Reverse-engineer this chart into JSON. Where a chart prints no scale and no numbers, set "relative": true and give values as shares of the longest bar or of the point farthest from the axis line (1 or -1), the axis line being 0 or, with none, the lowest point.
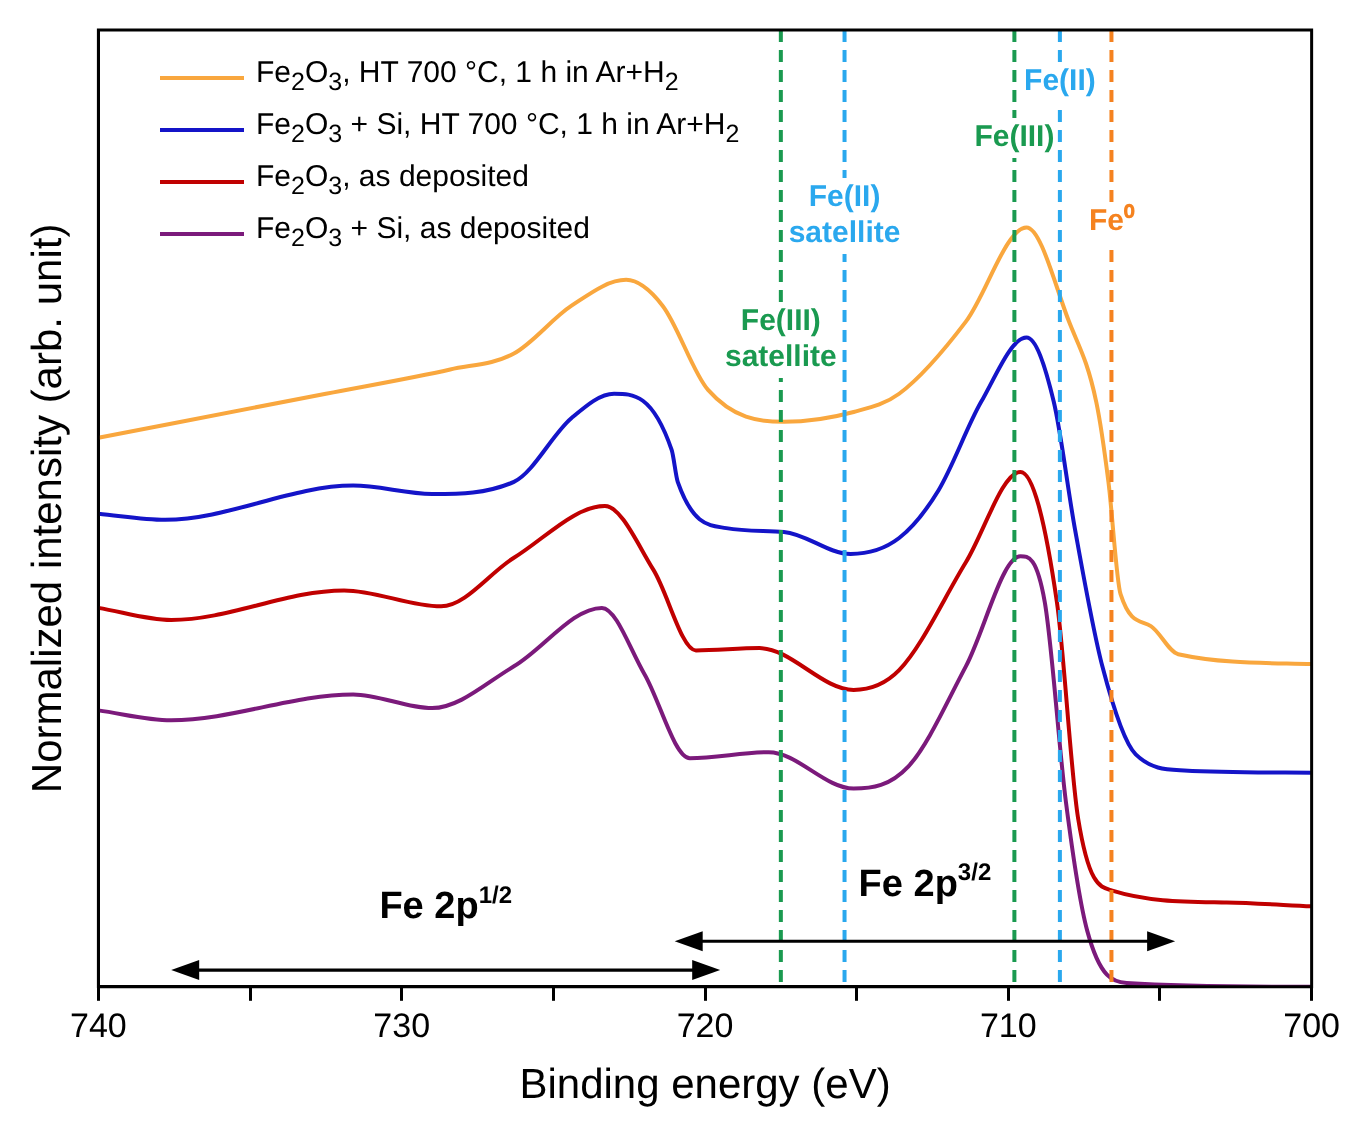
{
  "chart_data": {
    "type": "line",
    "relative": true,
    "xlabel": "Binding energy (eV)",
    "ylabel": "Normalized intensity (arb. unit)",
    "xlim": [
      740,
      700
    ],
    "xticks": [
      740,
      {
        "value": 735,
        "label": null
      },
      730,
      {
        "value": 725,
        "label": null
      },
      720,
      {
        "value": 715,
        "label": null
      },
      710,
      {
        "value": 705,
        "label": null
      },
      700
    ],
    "grid": false,
    "legend": "top left",
    "marker": "none",
    "line_style": "solid",
    "series": [
      {
        "name": "Fe$_{2}$O$_{3}$, HT 700 °C, 1 h in Ar+H$_{2}$",
        "color": "#f9a73e",
        "x": [
          740,
          732.5,
          728.4,
          726.3,
          724.4,
          722.6,
          721.4,
          719.9,
          717.4,
          715.1,
          713.6,
          711.4,
          709.4,
          708.0,
          707.1,
          706.7,
          706.3,
          705.3,
          704.4,
          700
        ],
        "values": [
          0.723,
          0.781,
          0.813,
          0.834,
          0.897,
          0.931,
          0.897,
          0.786,
          0.744,
          0.757,
          0.781,
          0.876,
          1.0,
          0.876,
          0.77,
          0.665,
          0.517,
          0.475,
          0.438,
          0.425
        ]
      },
      {
        "name": "Fe$_{2}$O$_{3}$ + Si, HT 700 °C, 1 h in Ar+H$_{2}$",
        "color": "#1414c8",
        "x": [
          740,
          737.8,
          731.6,
          729,
          726.3,
          724.4,
          723,
          721.1,
          720.9,
          719.3,
          717.4,
          715.2,
          713.6,
          712.3,
          710.9,
          709.4,
          708.5,
          707.8,
          706.9,
          705.8,
          704.2,
          700
        ],
        "values": [
          0.623,
          0.615,
          0.66,
          0.649,
          0.665,
          0.749,
          0.781,
          0.707,
          0.665,
          0.604,
          0.599,
          0.57,
          0.591,
          0.654,
          0.77,
          0.855,
          0.77,
          0.602,
          0.422,
          0.306,
          0.285,
          0.282
        ]
      },
      {
        "name": "Fe$_{2}$O$_{3}$, as deposited",
        "color": "#c00000",
        "x": [
          740,
          737.6,
          731.9,
          728.7,
          726.3,
          723.3,
          721.7,
          720.3,
          718.2,
          715.1,
          713.6,
          711.4,
          709.6,
          708.4,
          707.7,
          706.6,
          702.8,
          700
        ],
        "values": [
          0.499,
          0.483,
          0.522,
          0.501,
          0.565,
          0.633,
          0.549,
          0.443,
          0.446,
          0.391,
          0.417,
          0.559,
          0.678,
          0.507,
          0.222,
          0.127,
          0.111,
          0.106
        ]
      },
      {
        "name": "Fe$_{2}$O$_{3}$ + Si, as deposited",
        "color": "#7b1a7b",
        "x": [
          740,
          737.6,
          731.6,
          729,
          726.3,
          723.4,
          722,
          720.5,
          717.9,
          715.1,
          713.3,
          711.4,
          709.6,
          708.8,
          708.1,
          707.4,
          706.1,
          700
        ],
        "values": [
          0.364,
          0.351,
          0.385,
          0.367,
          0.422,
          0.499,
          0.412,
          0.301,
          0.309,
          0.261,
          0.29,
          0.422,
          0.567,
          0.507,
          0.243,
          0.074,
          0.005,
          0
        ]
      }
    ],
    "ref_lines": [
      {
        "axis": "x",
        "value": 717.5,
        "label": "Fe(III)\nsatellite",
        "color": "#1a9a50",
        "line_style": "dashed"
      },
      {
        "axis": "x",
        "value": 715.4,
        "label": "Fe(II)\nsatellite",
        "color": "#2aa8ee",
        "line_style": "dashed"
      },
      {
        "axis": "x",
        "value": 709.8,
        "label": "Fe(III)",
        "color": "#1a9a50",
        "line_style": "dashed"
      },
      {
        "axis": "x",
        "value": 708.3,
        "label": "Fe(II)",
        "color": "#2aa8ee",
        "line_style": "dashed"
      },
      {
        "axis": "x",
        "value": 706.6,
        "label": "Fe⁰",
        "color": "#f5821f",
        "line_style": "dashed"
      }
    ],
    "annotations": [
      "Fe 2p$^{1/2}$",
      "Fe 2p$^{3/2}$"
    ]
  }
}
